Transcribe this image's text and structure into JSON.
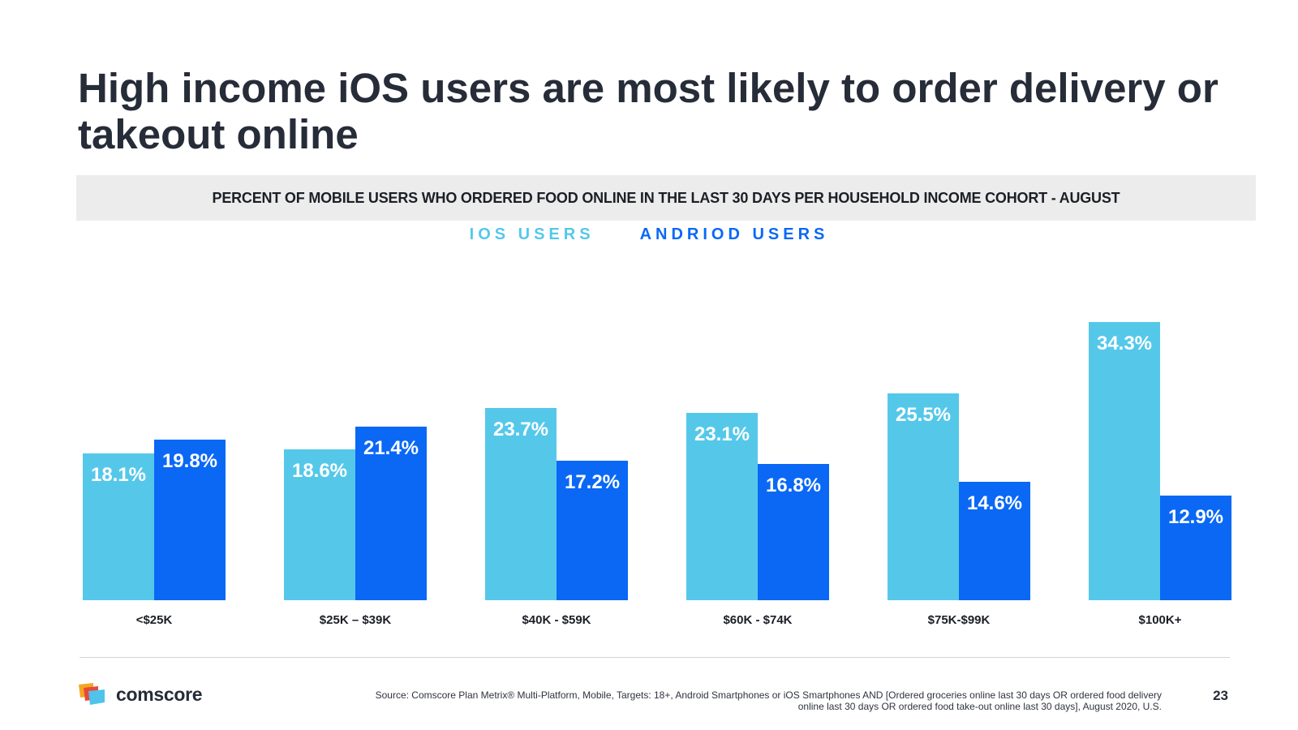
{
  "title": "High income iOS users are most likely to order delivery or takeout online",
  "subtitle": "PERCENT OF MOBILE USERS WHO ORDERED FOOD ONLINE IN THE LAST 30 DAYS PER HOUSEHOLD INCOME COHORT - AUGUST",
  "colors": {
    "ios": "#55c8ea",
    "android": "#0a68f5",
    "title": "#262c38"
  },
  "chart_data": {
    "type": "bar",
    "title": "PERCENT OF MOBILE USERS WHO ORDERED FOOD ONLINE IN THE LAST 30 DAYS PER HOUSEHOLD INCOME COHORT - AUGUST",
    "categories": [
      "<$25K",
      "$25K – $39K",
      "$40K - $59K",
      "$60K - $74K",
      "$75K-$99K",
      "$100K+"
    ],
    "series": [
      {
        "name": "IOS USERS",
        "values": [
          18.1,
          18.6,
          23.7,
          23.1,
          25.5,
          34.3
        ],
        "labels": [
          "18.1%",
          "18.6%",
          "23.7%",
          "23.1%",
          "25.5%",
          "34.3%"
        ]
      },
      {
        "name": "ANDRIOD USERS",
        "values": [
          19.8,
          21.4,
          17.2,
          16.8,
          14.6,
          12.9
        ],
        "labels": [
          "19.8%",
          "21.4%",
          "17.2%",
          "16.8%",
          "14.6%",
          "12.9%"
        ]
      }
    ],
    "xlabel": "",
    "ylabel": "",
    "ylim": [
      0,
      35
    ],
    "grid": false,
    "legend": "top-center"
  },
  "footer": {
    "logo_text": "comscore",
    "source": "Source: Comscore Plan Metrix® Multi-Platform, Mobile, Targets: 18+, Android Smartphones or iOS Smartphones AND [Ordered groceries online last 30 days OR ordered food delivery online last 30 days OR ordered food take-out online last 30 days], August 2020, U.S.",
    "page_number": "23"
  }
}
